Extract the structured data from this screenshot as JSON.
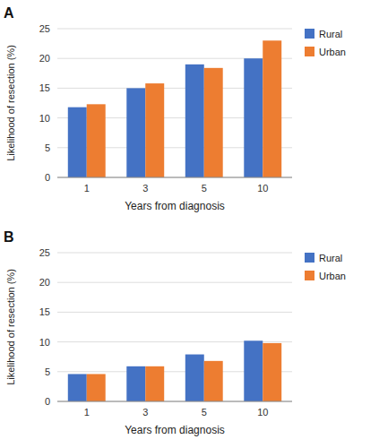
{
  "chart_data": [
    {
      "type": "bar",
      "title": "A",
      "categories": [
        "1",
        "3",
        "5",
        "10"
      ],
      "series": [
        {
          "name": "Rural",
          "color": "#4472C4",
          "values": [
            11.8,
            15.0,
            19.0,
            20.0
          ]
        },
        {
          "name": "Urban",
          "color": "#ED7D31",
          "values": [
            12.3,
            15.8,
            18.4,
            23.0
          ]
        }
      ],
      "ylim": [
        0,
        25
      ],
      "yticks": [
        0,
        5,
        10,
        15,
        20,
        25
      ],
      "ylabel": "Likelihood of resection (%)",
      "xlabel": "Years from diagnosis",
      "grid": true,
      "legend": "right"
    },
    {
      "type": "bar",
      "title": "B",
      "categories": [
        "1",
        "3",
        "5",
        "10"
      ],
      "series": [
        {
          "name": "Rural",
          "color": "#4472C4",
          "values": [
            4.6,
            5.9,
            7.9,
            10.2
          ]
        },
        {
          "name": "Urban",
          "color": "#ED7D31",
          "values": [
            4.6,
            5.9,
            6.8,
            9.8
          ]
        }
      ],
      "ylim": [
        0,
        25
      ],
      "yticks": [
        0,
        5,
        10,
        15,
        20,
        25
      ],
      "ylabel": "Likelihood of resection (%)",
      "xlabel": "Years from diagnosis",
      "grid": true,
      "legend": "right"
    }
  ]
}
